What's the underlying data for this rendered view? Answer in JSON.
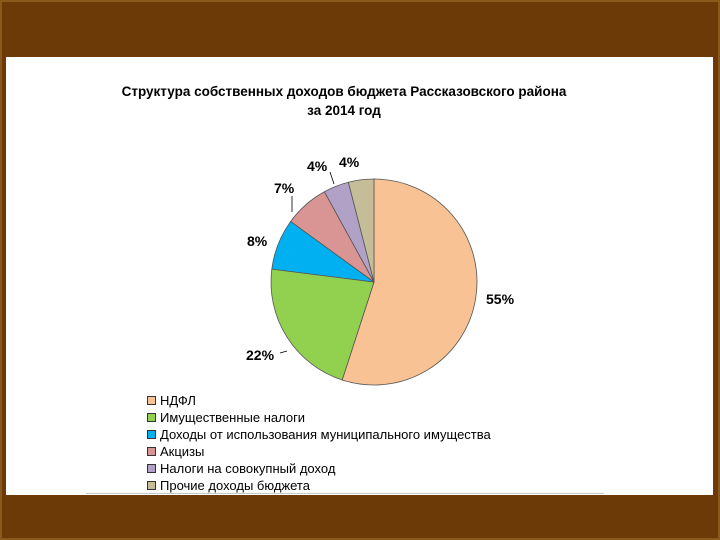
{
  "chart_data": {
    "type": "pie",
    "title_line1": "Структура собственных доходов бюджета Рассказовского района",
    "title_line2": "за 2014 год",
    "slices": [
      {
        "name": "НДФЛ",
        "value": 55,
        "label": "55%",
        "color": "#f9c294"
      },
      {
        "name": "Имущественные налоги",
        "value": 22,
        "label": "22%",
        "color": "#92d050"
      },
      {
        "name": "Доходы от использования муниципального имущества",
        "value": 8,
        "label": "8%",
        "color": "#00b0f0"
      },
      {
        "name": "Акцизы",
        "value": 7,
        "label": "7%",
        "color": "#d99594"
      },
      {
        "name": "Налоги на совокупный доход",
        "value": 4,
        "label": "4%",
        "color": "#b2a1c7"
      },
      {
        "name": "Прочие доходы бюджета",
        "value": 4,
        "label": "4%",
        "color": "#c4bd97"
      }
    ],
    "legend_position": "bottom"
  }
}
